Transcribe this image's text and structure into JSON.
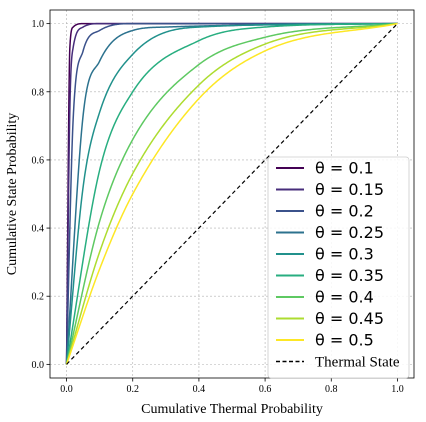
{
  "chart_data": {
    "type": "line",
    "xlabel": "Cumulative Thermal Probability",
    "ylabel": "Cumulative State Probability",
    "xlim": [
      -0.05,
      1.05
    ],
    "ylim": [
      -0.04,
      1.04
    ],
    "x_ticks": [
      "0.0",
      "0.2",
      "0.4",
      "0.6",
      "0.8",
      "1.0"
    ],
    "y_ticks": [
      "0.0",
      "0.2",
      "0.4",
      "0.6",
      "0.8",
      "1.0"
    ],
    "grid": true,
    "legend_position": "lower-right",
    "series": [
      {
        "name": "θ = 0.1",
        "theta": 0.1,
        "color": "#440154"
      },
      {
        "name": "θ = 0.15",
        "theta": 0.15,
        "color": "#472d7b"
      },
      {
        "name": "θ = 0.2",
        "theta": 0.2,
        "color": "#3b528b"
      },
      {
        "name": "θ = 0.25",
        "theta": 0.25,
        "color": "#2c728e"
      },
      {
        "name": "θ = 0.3",
        "theta": 0.3,
        "color": "#21918c"
      },
      {
        "name": "θ = 0.35",
        "theta": 0.35,
        "color": "#28ae80"
      },
      {
        "name": "θ = 0.4",
        "theta": 0.4,
        "color": "#5ec962"
      },
      {
        "name": "θ = 0.45",
        "theta": 0.45,
        "color": "#addc30"
      },
      {
        "name": "θ = 0.5",
        "theta": 0.5,
        "color": "#fde725"
      }
    ],
    "reference": {
      "name": "Thermal State",
      "x": [
        0,
        1
      ],
      "y": [
        0,
        1
      ],
      "color": "#000000",
      "style": "dashed"
    },
    "curve_anchor_points": [
      {
        "theta": 0.1,
        "x": [
          0,
          0.01,
          0.02,
          0.05,
          0.1,
          1.0
        ],
        "y": [
          0,
          0.93,
          0.99,
          1.0,
          1.0,
          1.0
        ]
      },
      {
        "theta": 0.15,
        "x": [
          0,
          0.01,
          0.02,
          0.05,
          0.1,
          1.0
        ],
        "y": [
          0,
          0.75,
          0.93,
          0.99,
          1.0,
          1.0
        ]
      },
      {
        "theta": 0.2,
        "x": [
          0,
          0.02,
          0.05,
          0.1,
          0.2,
          1.0
        ],
        "y": [
          0,
          0.72,
          0.92,
          0.98,
          1.0,
          1.0
        ]
      },
      {
        "theta": 0.25,
        "x": [
          0,
          0.05,
          0.1,
          0.2,
          0.3,
          1.0
        ],
        "y": [
          0,
          0.73,
          0.89,
          0.98,
          0.99,
          1.0
        ]
      },
      {
        "theta": 0.3,
        "x": [
          0,
          0.05,
          0.1,
          0.2,
          0.4,
          1.0
        ],
        "y": [
          0,
          0.52,
          0.74,
          0.91,
          0.99,
          1.0
        ]
      },
      {
        "theta": 0.35,
        "x": [
          0,
          0.1,
          0.2,
          0.4,
          0.6,
          1.0
        ],
        "y": [
          0,
          0.57,
          0.8,
          0.95,
          0.99,
          1.0
        ]
      },
      {
        "theta": 0.4,
        "x": [
          0,
          0.1,
          0.2,
          0.4,
          0.6,
          1.0
        ],
        "y": [
          0,
          0.42,
          0.66,
          0.88,
          0.96,
          1.0
        ]
      },
      {
        "theta": 0.45,
        "x": [
          0,
          0.1,
          0.2,
          0.4,
          0.6,
          1.0
        ],
        "y": [
          0,
          0.33,
          0.56,
          0.82,
          0.94,
          1.0
        ]
      },
      {
        "theta": 0.5,
        "x": [
          0,
          0.1,
          0.2,
          0.4,
          0.6,
          1.0
        ],
        "y": [
          0,
          0.28,
          0.5,
          0.78,
          0.92,
          1.0
        ]
      }
    ]
  }
}
